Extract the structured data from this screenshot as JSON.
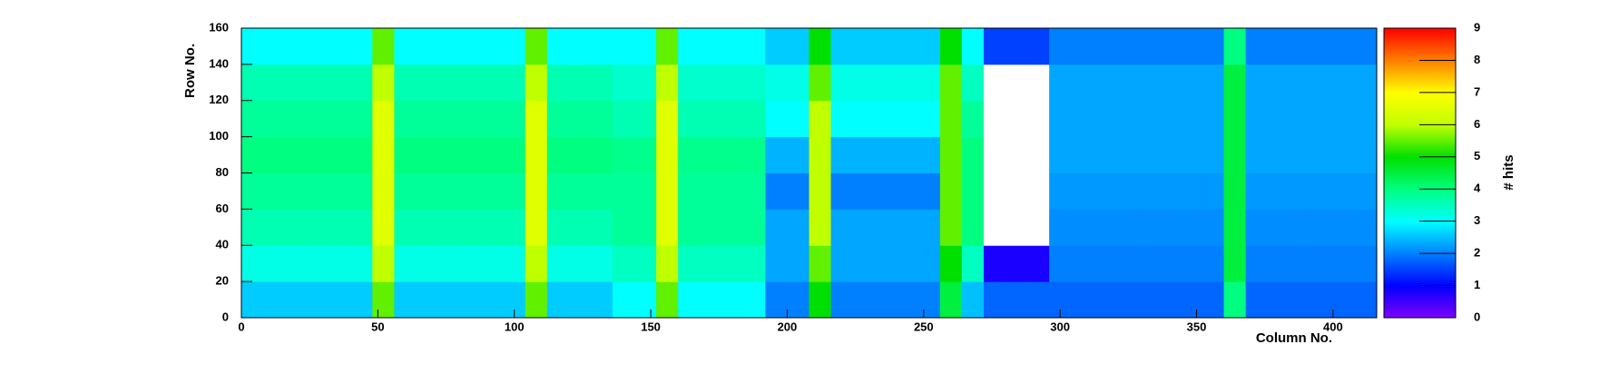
{
  "chart_data": {
    "type": "heatmap",
    "xlabel": "Column No.",
    "ylabel": "Row No.",
    "zlabel": "# hits",
    "xlim": [
      0,
      416
    ],
    "ylim": [
      0,
      160
    ],
    "zlim": [
      0,
      9
    ],
    "xticks": [
      0,
      50,
      100,
      150,
      200,
      250,
      300,
      350,
      400
    ],
    "yticks": [
      0,
      20,
      40,
      60,
      80,
      100,
      120,
      140,
      160
    ],
    "zticks": [
      0,
      1,
      2,
      3,
      4,
      5,
      6,
      7,
      8,
      9
    ],
    "colorscale": [
      "#8000ff",
      "#0000ff",
      "#0080ff",
      "#00ffff",
      "#00ff80",
      "#00e000",
      "#c0ff00",
      "#ffff00",
      "#ff8000",
      "#ff0000"
    ],
    "z": [
      [
        2.6,
        2.6,
        2.6,
        2.6,
        2.6,
        2.6,
        5.5,
        2.6,
        2.6,
        2.6,
        2.6,
        2.6,
        2.6,
        5.5,
        2.6,
        2.6,
        2.6,
        3,
        3,
        5.5,
        3,
        3,
        3,
        3,
        2,
        2,
        5,
        2,
        2,
        2,
        2,
        2,
        4.5,
        2.5,
        1.8,
        1.8,
        1.8,
        1.8,
        1.8,
        1.8,
        1.8,
        1.8,
        1.8,
        1.8,
        1.8,
        4,
        1.8,
        1.8,
        1.8,
        1.8,
        1.8,
        1.8
      ],
      [
        3.2,
        3.2,
        3.2,
        3.2,
        3.2,
        3.2,
        6,
        3.2,
        3.2,
        3.2,
        3.2,
        3.2,
        3.2,
        6,
        3.2,
        3.2,
        3.2,
        3.5,
        3.5,
        6,
        3.5,
        3.5,
        3.5,
        3.5,
        2.3,
        2.3,
        5.5,
        2.3,
        2.3,
        2.3,
        2.3,
        2.3,
        5,
        3.5,
        0.8,
        0.8,
        0.8,
        2,
        2,
        2,
        2,
        2,
        2,
        2,
        2,
        4.5,
        2,
        2,
        2,
        2,
        2,
        2
      ],
      [
        3.6,
        3.6,
        3.6,
        3.6,
        3.6,
        3.6,
        6.5,
        3.6,
        3.6,
        3.6,
        3.6,
        3.6,
        3.6,
        6.5,
        3.6,
        3.6,
        3.6,
        3.8,
        3.8,
        6.5,
        3.8,
        3.8,
        3.8,
        3.8,
        2.3,
        2.3,
        6,
        2.3,
        2.3,
        2.3,
        2.3,
        2.3,
        5.5,
        4,
        0,
        0,
        0,
        2.1,
        2.1,
        2.1,
        2.1,
        2.1,
        2.1,
        2.1,
        2.1,
        4.5,
        2.1,
        2.1,
        2.1,
        2.1,
        2.1,
        2.1
      ],
      [
        3.8,
        3.8,
        3.8,
        3.8,
        3.8,
        3.8,
        6.5,
        3.8,
        3.8,
        3.8,
        3.8,
        3.8,
        3.8,
        6.5,
        3.8,
        3.8,
        3.8,
        3.8,
        3.8,
        6.5,
        3.8,
        3.8,
        3.8,
        3.8,
        2,
        2,
        6,
        2,
        2,
        2,
        2,
        2,
        5.5,
        4,
        0,
        0,
        0,
        2.2,
        2.2,
        2.2,
        2.2,
        2.2,
        2.2,
        2.2,
        2.2,
        4.5,
        2.2,
        2.2,
        2.2,
        2.2,
        2.2,
        2.2
      ],
      [
        4,
        4,
        4,
        4,
        4,
        4,
        6.5,
        4,
        4,
        4,
        4,
        4,
        4,
        6.5,
        4,
        4,
        4,
        3.9,
        3.9,
        6.5,
        3.9,
        3.9,
        3.9,
        3.9,
        2.4,
        2.4,
        6,
        2.4,
        2.4,
        2.4,
        2.4,
        2.4,
        5.5,
        4,
        0,
        0,
        0,
        2.3,
        2.3,
        2.3,
        2.3,
        2.3,
        2.3,
        2.3,
        2.3,
        4.5,
        2.3,
        2.3,
        2.3,
        2.3,
        2.3,
        2.3
      ],
      [
        3.8,
        3.8,
        3.8,
        3.8,
        3.8,
        3.8,
        6.5,
        3.8,
        3.8,
        3.8,
        3.8,
        3.8,
        3.8,
        6.5,
        3.8,
        3.8,
        3.8,
        3.6,
        3.6,
        6.5,
        3.6,
        3.6,
        3.6,
        3.6,
        3,
        3,
        6,
        3,
        3,
        3,
        3,
        3,
        5.5,
        3.8,
        0,
        0,
        0,
        2.3,
        2.3,
        2.3,
        2.3,
        2.3,
        2.3,
        2.3,
        2.3,
        4.5,
        2.3,
        2.3,
        2.3,
        2.3,
        2.3,
        2.3
      ],
      [
        3.6,
        3.6,
        3.6,
        3.6,
        3.6,
        3.6,
        6,
        3.6,
        3.6,
        3.6,
        3.6,
        3.6,
        3.6,
        6,
        3.6,
        3.6,
        3.6,
        3.4,
        3.4,
        6,
        3.4,
        3.4,
        3.4,
        3.4,
        3.2,
        3.2,
        5.5,
        3.2,
        3.2,
        3.2,
        3.2,
        3.2,
        5.5,
        3.5,
        0,
        0,
        0,
        2.3,
        2.3,
        2.3,
        2.3,
        2.3,
        2.3,
        2.3,
        2.3,
        4.5,
        2.3,
        2.3,
        2.3,
        2.3,
        2.3,
        2.3
      ],
      [
        3,
        3,
        3,
        3,
        3,
        3,
        5.5,
        3,
        3,
        3,
        3,
        3,
        3,
        5.5,
        3,
        3,
        3,
        3,
        3,
        5.5,
        3,
        3,
        3,
        3,
        2.6,
        2.6,
        5,
        2.6,
        2.6,
        2.6,
        2.6,
        2.6,
        5,
        3,
        1.5,
        1.5,
        1.5,
        2,
        2,
        2,
        2,
        2,
        2,
        2,
        2,
        4,
        2,
        2,
        2,
        2,
        2,
        2
      ]
    ]
  }
}
